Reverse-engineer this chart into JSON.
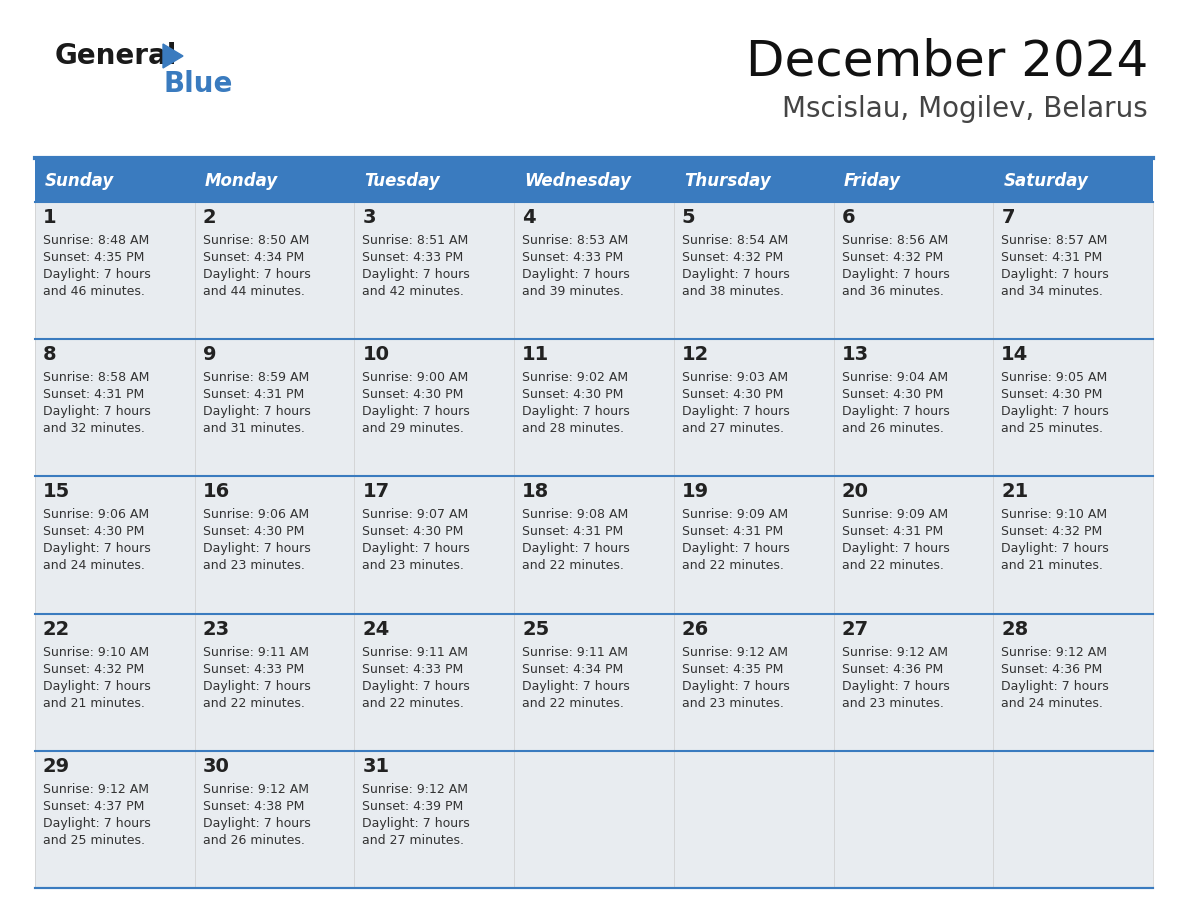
{
  "title": "December 2024",
  "subtitle": "Mscislau, Mogilev, Belarus",
  "header_color": "#3a7bbf",
  "header_text_color": "#ffffff",
  "cell_bg_color": "#e8edf2",
  "border_color": "#3a7bbf",
  "text_color": "#333333",
  "days_of_week": [
    "Sunday",
    "Monday",
    "Tuesday",
    "Wednesday",
    "Thursday",
    "Friday",
    "Saturday"
  ],
  "calendar_data": [
    [
      {
        "day": 1,
        "sunrise": "8:48 AM",
        "sunset": "4:35 PM",
        "daylight_hours": 7,
        "daylight_minutes": 46
      },
      {
        "day": 2,
        "sunrise": "8:50 AM",
        "sunset": "4:34 PM",
        "daylight_hours": 7,
        "daylight_minutes": 44
      },
      {
        "day": 3,
        "sunrise": "8:51 AM",
        "sunset": "4:33 PM",
        "daylight_hours": 7,
        "daylight_minutes": 42
      },
      {
        "day": 4,
        "sunrise": "8:53 AM",
        "sunset": "4:33 PM",
        "daylight_hours": 7,
        "daylight_minutes": 39
      },
      {
        "day": 5,
        "sunrise": "8:54 AM",
        "sunset": "4:32 PM",
        "daylight_hours": 7,
        "daylight_minutes": 38
      },
      {
        "day": 6,
        "sunrise": "8:56 AM",
        "sunset": "4:32 PM",
        "daylight_hours": 7,
        "daylight_minutes": 36
      },
      {
        "day": 7,
        "sunrise": "8:57 AM",
        "sunset": "4:31 PM",
        "daylight_hours": 7,
        "daylight_minutes": 34
      }
    ],
    [
      {
        "day": 8,
        "sunrise": "8:58 AM",
        "sunset": "4:31 PM",
        "daylight_hours": 7,
        "daylight_minutes": 32
      },
      {
        "day": 9,
        "sunrise": "8:59 AM",
        "sunset": "4:31 PM",
        "daylight_hours": 7,
        "daylight_minutes": 31
      },
      {
        "day": 10,
        "sunrise": "9:00 AM",
        "sunset": "4:30 PM",
        "daylight_hours": 7,
        "daylight_minutes": 29
      },
      {
        "day": 11,
        "sunrise": "9:02 AM",
        "sunset": "4:30 PM",
        "daylight_hours": 7,
        "daylight_minutes": 28
      },
      {
        "day": 12,
        "sunrise": "9:03 AM",
        "sunset": "4:30 PM",
        "daylight_hours": 7,
        "daylight_minutes": 27
      },
      {
        "day": 13,
        "sunrise": "9:04 AM",
        "sunset": "4:30 PM",
        "daylight_hours": 7,
        "daylight_minutes": 26
      },
      {
        "day": 14,
        "sunrise": "9:05 AM",
        "sunset": "4:30 PM",
        "daylight_hours": 7,
        "daylight_minutes": 25
      }
    ],
    [
      {
        "day": 15,
        "sunrise": "9:06 AM",
        "sunset": "4:30 PM",
        "daylight_hours": 7,
        "daylight_minutes": 24
      },
      {
        "day": 16,
        "sunrise": "9:06 AM",
        "sunset": "4:30 PM",
        "daylight_hours": 7,
        "daylight_minutes": 23
      },
      {
        "day": 17,
        "sunrise": "9:07 AM",
        "sunset": "4:30 PM",
        "daylight_hours": 7,
        "daylight_minutes": 23
      },
      {
        "day": 18,
        "sunrise": "9:08 AM",
        "sunset": "4:31 PM",
        "daylight_hours": 7,
        "daylight_minutes": 22
      },
      {
        "day": 19,
        "sunrise": "9:09 AM",
        "sunset": "4:31 PM",
        "daylight_hours": 7,
        "daylight_minutes": 22
      },
      {
        "day": 20,
        "sunrise": "9:09 AM",
        "sunset": "4:31 PM",
        "daylight_hours": 7,
        "daylight_minutes": 22
      },
      {
        "day": 21,
        "sunrise": "9:10 AM",
        "sunset": "4:32 PM",
        "daylight_hours": 7,
        "daylight_minutes": 21
      }
    ],
    [
      {
        "day": 22,
        "sunrise": "9:10 AM",
        "sunset": "4:32 PM",
        "daylight_hours": 7,
        "daylight_minutes": 21
      },
      {
        "day": 23,
        "sunrise": "9:11 AM",
        "sunset": "4:33 PM",
        "daylight_hours": 7,
        "daylight_minutes": 22
      },
      {
        "day": 24,
        "sunrise": "9:11 AM",
        "sunset": "4:33 PM",
        "daylight_hours": 7,
        "daylight_minutes": 22
      },
      {
        "day": 25,
        "sunrise": "9:11 AM",
        "sunset": "4:34 PM",
        "daylight_hours": 7,
        "daylight_minutes": 22
      },
      {
        "day": 26,
        "sunrise": "9:12 AM",
        "sunset": "4:35 PM",
        "daylight_hours": 7,
        "daylight_minutes": 23
      },
      {
        "day": 27,
        "sunrise": "9:12 AM",
        "sunset": "4:36 PM",
        "daylight_hours": 7,
        "daylight_minutes": 23
      },
      {
        "day": 28,
        "sunrise": "9:12 AM",
        "sunset": "4:36 PM",
        "daylight_hours": 7,
        "daylight_minutes": 24
      }
    ],
    [
      {
        "day": 29,
        "sunrise": "9:12 AM",
        "sunset": "4:37 PM",
        "daylight_hours": 7,
        "daylight_minutes": 25
      },
      {
        "day": 30,
        "sunrise": "9:12 AM",
        "sunset": "4:38 PM",
        "daylight_hours": 7,
        "daylight_minutes": 26
      },
      {
        "day": 31,
        "sunrise": "9:12 AM",
        "sunset": "4:39 PM",
        "daylight_hours": 7,
        "daylight_minutes": 27
      },
      null,
      null,
      null,
      null
    ]
  ]
}
